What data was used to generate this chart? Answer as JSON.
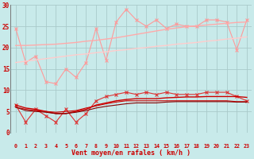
{
  "xlabel": "Vent moyen/en rafales ( km/h )",
  "x": [
    0,
    1,
    2,
    3,
    4,
    5,
    6,
    7,
    8,
    9,
    10,
    11,
    12,
    13,
    14,
    15,
    16,
    17,
    18,
    19,
    20,
    21,
    22,
    23
  ],
  "series": [
    {
      "name": "rafales_zigzag",
      "color": "#ff9999",
      "marker": "x",
      "markersize": 3,
      "linewidth": 0.8,
      "y": [
        24.5,
        16.5,
        18.0,
        12.0,
        11.5,
        15.0,
        13.0,
        16.5,
        24.5,
        17.0,
        26.0,
        29.0,
        26.5,
        25.0,
        26.5,
        24.5,
        25.5,
        25.0,
        25.0,
        26.5,
        26.5,
        26.0,
        19.5,
        26.5
      ]
    },
    {
      "name": "trend_upper1",
      "color": "#ffaaaa",
      "marker": null,
      "linewidth": 1.0,
      "y": [
        20.5,
        20.5,
        20.6,
        20.7,
        20.8,
        21.0,
        21.2,
        21.5,
        21.7,
        22.0,
        22.3,
        22.7,
        23.1,
        23.5,
        23.9,
        24.3,
        24.6,
        24.9,
        25.1,
        25.3,
        25.5,
        25.7,
        25.9,
        26.0
      ]
    },
    {
      "name": "trend_upper2",
      "color": "#ffcccc",
      "marker": null,
      "linewidth": 1.0,
      "y": [
        16.5,
        16.8,
        17.1,
        17.4,
        17.7,
        18.0,
        18.3,
        18.5,
        18.8,
        19.0,
        19.3,
        19.5,
        19.8,
        20.0,
        20.3,
        20.5,
        20.8,
        21.0,
        21.2,
        21.5,
        21.7,
        22.0,
        22.2,
        22.5
      ]
    },
    {
      "name": "vent_moyen_zigzag",
      "color": "#dd3333",
      "marker": "x",
      "markersize": 3,
      "linewidth": 0.8,
      "y": [
        6.5,
        2.5,
        5.5,
        4.0,
        2.5,
        5.5,
        2.5,
        4.5,
        7.5,
        8.5,
        9.0,
        9.5,
        9.0,
        9.5,
        9.0,
        9.5,
        9.0,
        9.0,
        9.0,
        9.5,
        9.5,
        9.5,
        8.5,
        7.5
      ]
    },
    {
      "name": "trend_lower1",
      "color": "#cc0000",
      "marker": null,
      "linewidth": 1.0,
      "y": [
        6.5,
        5.8,
        5.5,
        5.0,
        4.5,
        4.5,
        5.0,
        5.5,
        6.5,
        7.0,
        7.5,
        7.8,
        8.0,
        8.0,
        8.0,
        8.2,
        8.3,
        8.4,
        8.4,
        8.5,
        8.5,
        8.5,
        8.5,
        8.3
      ]
    },
    {
      "name": "trend_lower2",
      "color": "#cc0000",
      "marker": null,
      "linewidth": 0.8,
      "y": [
        6.0,
        5.5,
        5.2,
        5.0,
        4.8,
        5.0,
        5.2,
        5.8,
        6.3,
        6.8,
        7.2,
        7.5,
        7.5,
        7.5,
        7.5,
        7.5,
        7.5,
        7.5,
        7.5,
        7.5,
        7.5,
        7.5,
        7.3,
        7.3
      ]
    },
    {
      "name": "trend_lower3",
      "color": "#880000",
      "marker": null,
      "linewidth": 0.8,
      "y": [
        6.0,
        5.2,
        5.0,
        4.8,
        4.5,
        4.5,
        4.8,
        5.2,
        5.8,
        6.2,
        6.5,
        6.8,
        7.0,
        7.0,
        7.0,
        7.2,
        7.3,
        7.3,
        7.3,
        7.3,
        7.3,
        7.3,
        7.2,
        7.2
      ]
    }
  ],
  "arrow_color": "#cc0000",
  "bg_color": "#c8eaea",
  "grid_color": "#aacaca",
  "text_color": "#cc0000",
  "ylim": [
    0,
    30
  ],
  "yticks": [
    0,
    5,
    10,
    15,
    20,
    25,
    30
  ],
  "figsize": [
    3.2,
    2.0
  ],
  "dpi": 100
}
